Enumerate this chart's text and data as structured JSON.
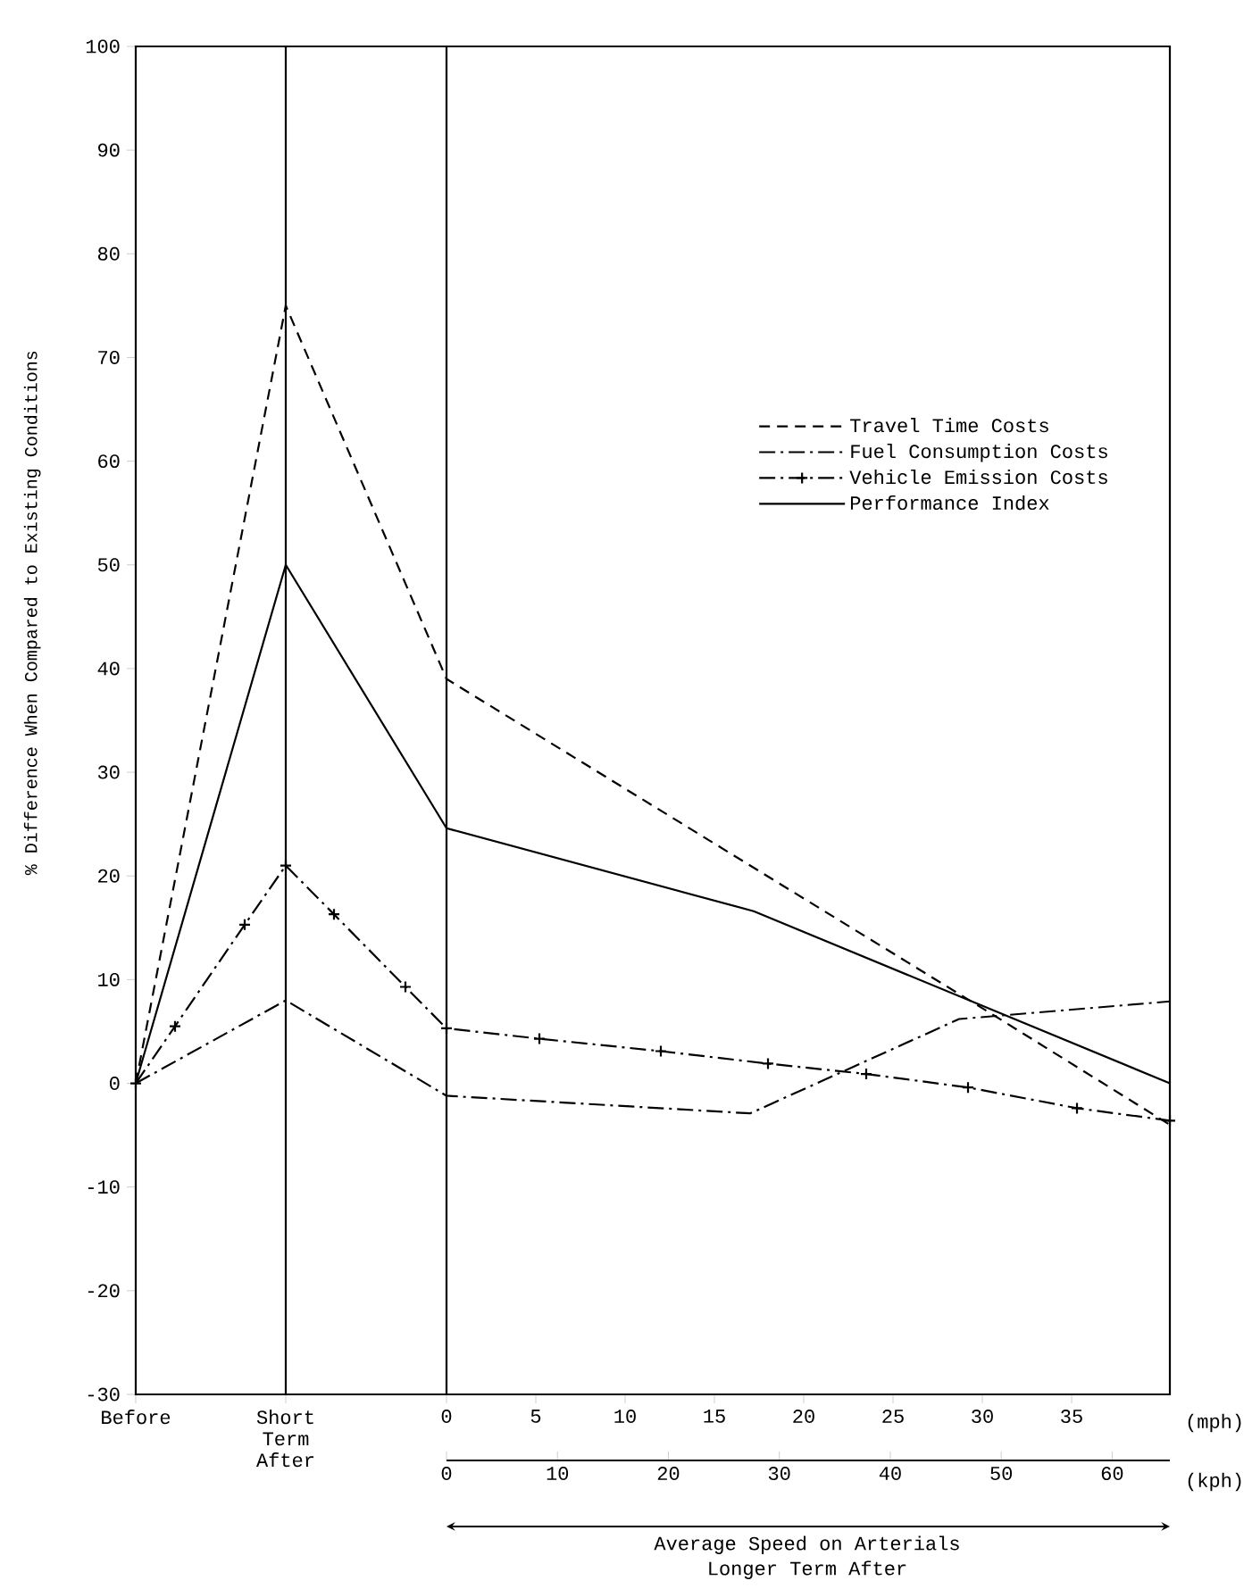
{
  "chart_data": {
    "type": "line",
    "ylabel": "% Difference When Compared to Existing Conditions",
    "xlabel": "(mph)",
    "x2label": "(kph)",
    "xlim": [
      -17.4,
      40.5
    ],
    "xticks": [
      {
        "value": -17.4,
        "label": "Before"
      },
      {
        "value": -9,
        "label": "Short Term After"
      },
      0,
      5,
      10,
      15,
      20,
      25,
      30,
      35
    ],
    "x2lim": [
      0,
      65.2
    ],
    "x2ticks": [
      0,
      10,
      20,
      30,
      40,
      50,
      60
    ],
    "ylim": [
      -30,
      100
    ],
    "yticks": [
      -30,
      -20,
      -10,
      0,
      10,
      20,
      30,
      40,
      50,
      60,
      70,
      80,
      90,
      100
    ],
    "legend": "right",
    "series": [
      {
        "name": "Travel Time Costs",
        "color": "#000000",
        "line_style": "dashed",
        "x": [
          -17.4,
          -9,
          0,
          30.7,
          40.5
        ],
        "values": [
          0,
          75,
          39,
          6.5,
          -4
        ]
      },
      {
        "name": "Fuel Consumption Costs",
        "color": "#000000",
        "line_style": "dashdot",
        "x": [
          -17.4,
          -9,
          0,
          17,
          28.7,
          40.5
        ],
        "values": [
          0,
          8,
          -1.2,
          -2.9,
          6.2,
          7.9
        ]
      },
      {
        "name": "Vehicle Emission Costs",
        "color": "#000000",
        "line_style": "dashdot",
        "marker": "cross",
        "x": [
          -17.4,
          -15.2,
          -11.3,
          -9,
          -6.3,
          -2.3,
          0,
          5.2,
          12,
          18,
          23.5,
          29.2,
          35.3,
          40.5
        ],
        "values": [
          0,
          5.5,
          15.3,
          21,
          16.3,
          9.3,
          5.3,
          4.3,
          3.1,
          1.9,
          0.9,
          -0.4,
          -2.4,
          -3.6
        ]
      },
      {
        "name": "Performance Index",
        "color": "#000000",
        "line_style": "solid",
        "x": [
          -17.4,
          -9,
          0,
          17.2,
          40.5
        ],
        "values": [
          0,
          50,
          24.6,
          16.6,
          0
        ]
      }
    ],
    "ref_lines": [
      {
        "axis": "x",
        "value": -9,
        "color": "#000000"
      },
      {
        "axis": "x",
        "value": 0,
        "color": "#000000"
      }
    ],
    "annotations": [
      "Average Speed on Arterials",
      "Longer Term After"
    ]
  }
}
